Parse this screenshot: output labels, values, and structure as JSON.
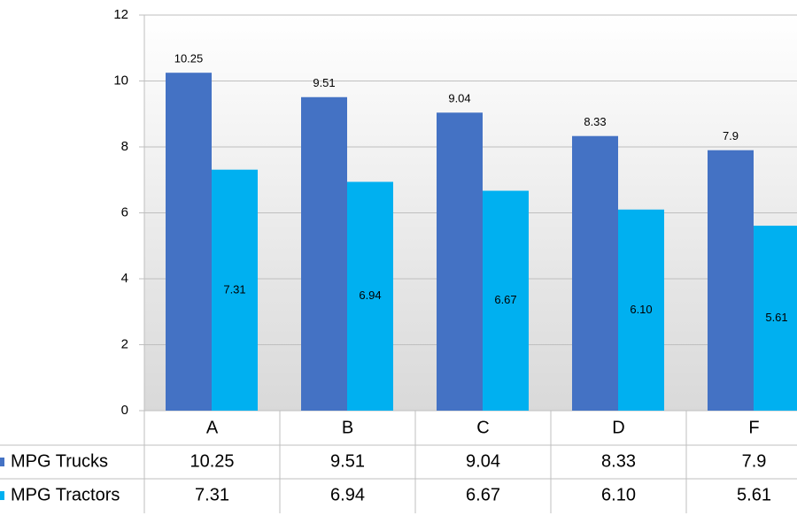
{
  "chart_data": {
    "type": "bar",
    "categories": [
      "A",
      "B",
      "C",
      "D",
      "F"
    ],
    "series": [
      {
        "name": "MPG Trucks",
        "color": "#4472c4",
        "values": [
          10.25,
          9.51,
          9.04,
          8.33,
          7.9
        ]
      },
      {
        "name": "MPG Tractors",
        "color": "#00b0f0",
        "values": [
          7.31,
          6.94,
          6.67,
          6.1,
          5.61
        ],
        "value_labels": [
          "7.31",
          "6.94",
          "6.67",
          "6.10",
          "5.61"
        ]
      }
    ],
    "ylim": [
      0,
      12
    ],
    "yticks": [
      0,
      2,
      4,
      6,
      8,
      10,
      12
    ],
    "grid": true
  }
}
